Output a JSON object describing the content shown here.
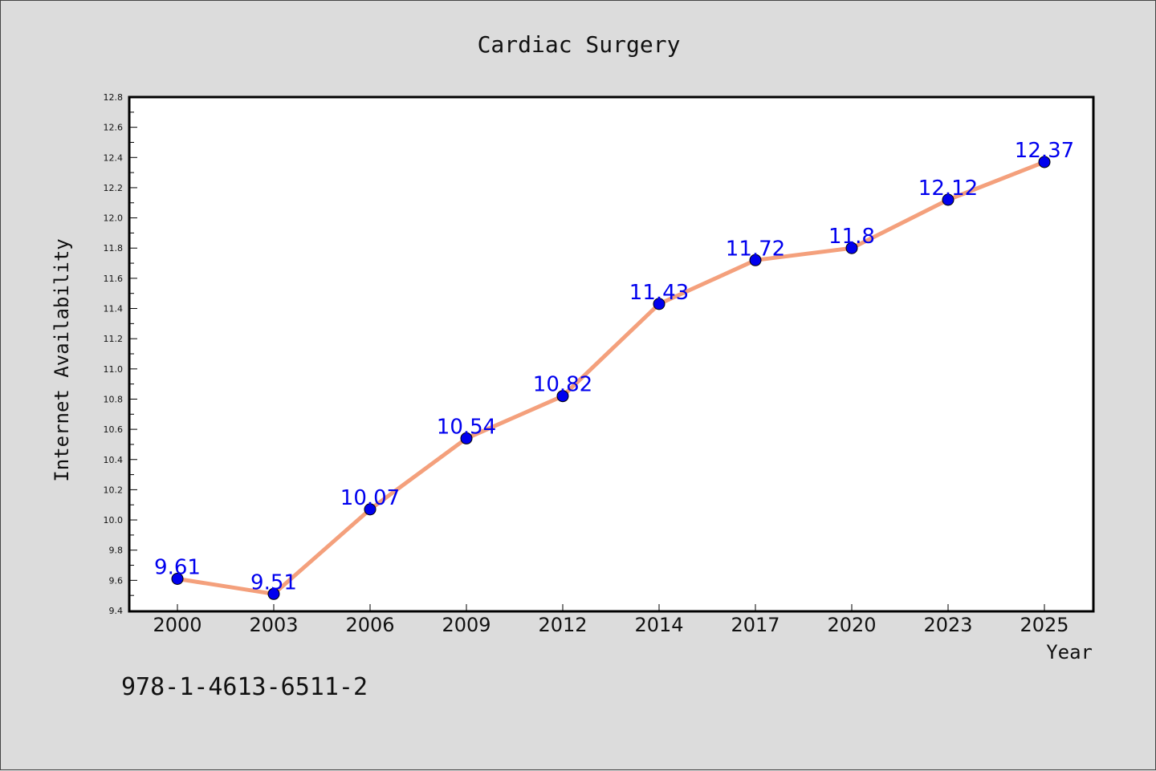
{
  "chart_data": {
    "type": "line",
    "title": "Cardiac Surgery",
    "xlabel": "Year",
    "ylabel": "Internet Availability",
    "categories": [
      "2000",
      "2003",
      "2006",
      "2009",
      "2012",
      "2014",
      "2017",
      "2020",
      "2023",
      "2025"
    ],
    "series": [
      {
        "values": [
          9.61,
          9.51,
          10.07,
          10.54,
          10.82,
          11.43,
          11.72,
          11.8,
          12.12,
          12.37
        ],
        "data_labels": [
          "9.61",
          "9.51",
          "10.07",
          "10.54",
          "10.82",
          "11.43",
          "11.72",
          "11.8",
          "12.12",
          "12.37"
        ]
      }
    ],
    "ylim": [
      9.4,
      12.8
    ],
    "yticks": [
      "9.4",
      "9.6",
      "9.8",
      "10.0",
      "10.2",
      "10.4",
      "10.6",
      "10.8",
      "11.0",
      "11.2",
      "11.4",
      "11.6",
      "11.8",
      "12.0",
      "12.2",
      "12.4",
      "12.6",
      "12.8"
    ],
    "grid": false,
    "colors": {
      "line": "#f4a07c",
      "marker": "#0000ee",
      "label": "#0000ee",
      "background": "#dcdcdc",
      "plot": "#ffffff"
    }
  },
  "footer": {
    "isbn": "978-1-4613-6511-2"
  }
}
